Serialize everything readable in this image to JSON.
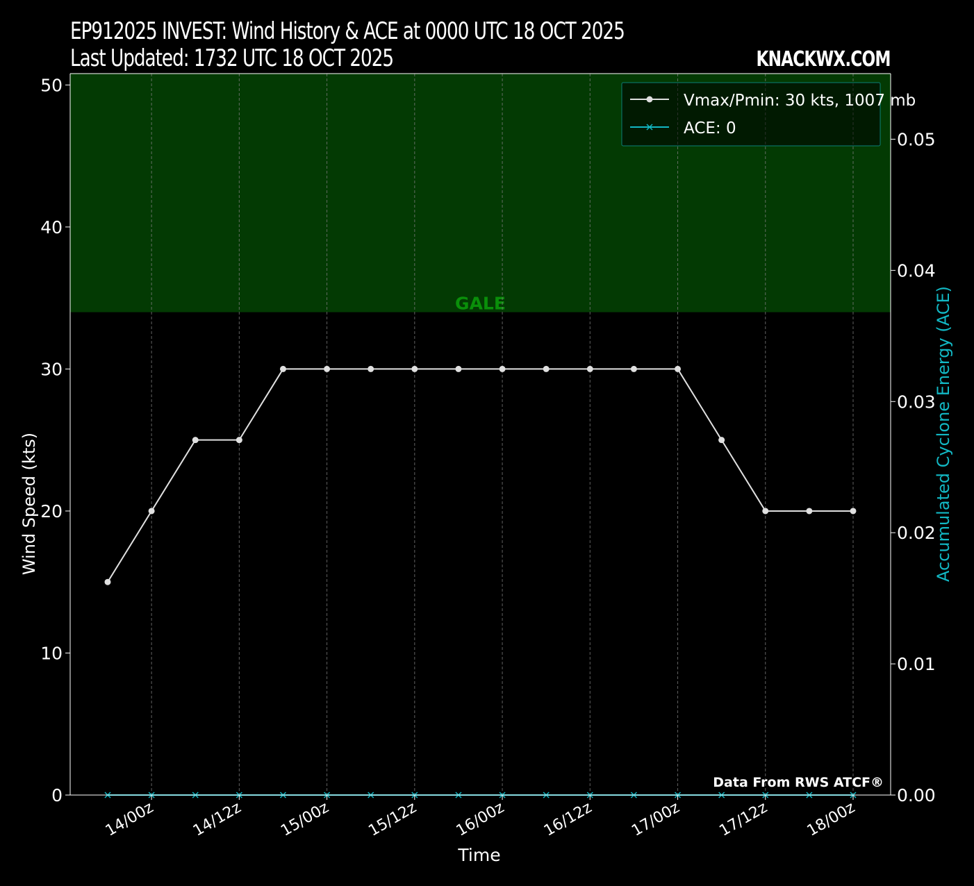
{
  "header": {
    "title": "EP912025 INVEST: Wind History & ACE at 0000 UTC 18 OCT 2025",
    "subtitle": "Last Updated: 1732 UTC 18 OCT 2025",
    "brand": "KNACKWX.COM"
  },
  "source_note": "Data From RWS ATCF®",
  "band_label": "GALE",
  "colors": {
    "background": "#000000",
    "gale_band": "#033a03",
    "gale_text": "#0a8f0a",
    "wind_line": "#e0e0e0",
    "ace_line": "#12b8c4",
    "grid": "#7a7a7a"
  },
  "chart_data": {
    "type": "line",
    "xlabel": "Time",
    "ylabel": "Wind Speed (kts)",
    "y2label": "Accumulated Cyclone Energy (ACE)",
    "x": [
      "13/18z",
      "14/00z",
      "14/06z",
      "14/12z",
      "14/18z",
      "15/00z",
      "15/06z",
      "15/12z",
      "15/18z",
      "16/00z",
      "16/06z",
      "16/12z",
      "16/18z",
      "17/00z",
      "17/06z",
      "17/12z",
      "17/18z",
      "18/00z"
    ],
    "xticks": [
      "14/00z",
      "14/12z",
      "15/00z",
      "15/12z",
      "16/00z",
      "16/12z",
      "17/00z",
      "17/12z",
      "18/00z"
    ],
    "ylim": [
      0,
      50.8
    ],
    "yticks": [
      0,
      10,
      20,
      30,
      40,
      50
    ],
    "y2lim": [
      0,
      0.055
    ],
    "y2ticks": [
      "0.00",
      "0.01",
      "0.02",
      "0.03",
      "0.04",
      "0.05"
    ],
    "grid": "vertical dashed",
    "legend_placement": "top-right",
    "threshold_bands": [
      {
        "label": "GALE",
        "from": 34,
        "to": 50.8
      }
    ],
    "series": [
      {
        "name": "Vmax/Pmin: 30 kts, 1007 mb",
        "axis": "left",
        "marker": "circle",
        "values": [
          15,
          20,
          25,
          25,
          30,
          30,
          30,
          30,
          30,
          30,
          30,
          30,
          30,
          30,
          25,
          20,
          20,
          20
        ]
      },
      {
        "name": "ACE: 0",
        "axis": "right",
        "marker": "x",
        "values": [
          0,
          0,
          0,
          0,
          0,
          0,
          0,
          0,
          0,
          0,
          0,
          0,
          0,
          0,
          0,
          0,
          0,
          0
        ]
      }
    ]
  }
}
